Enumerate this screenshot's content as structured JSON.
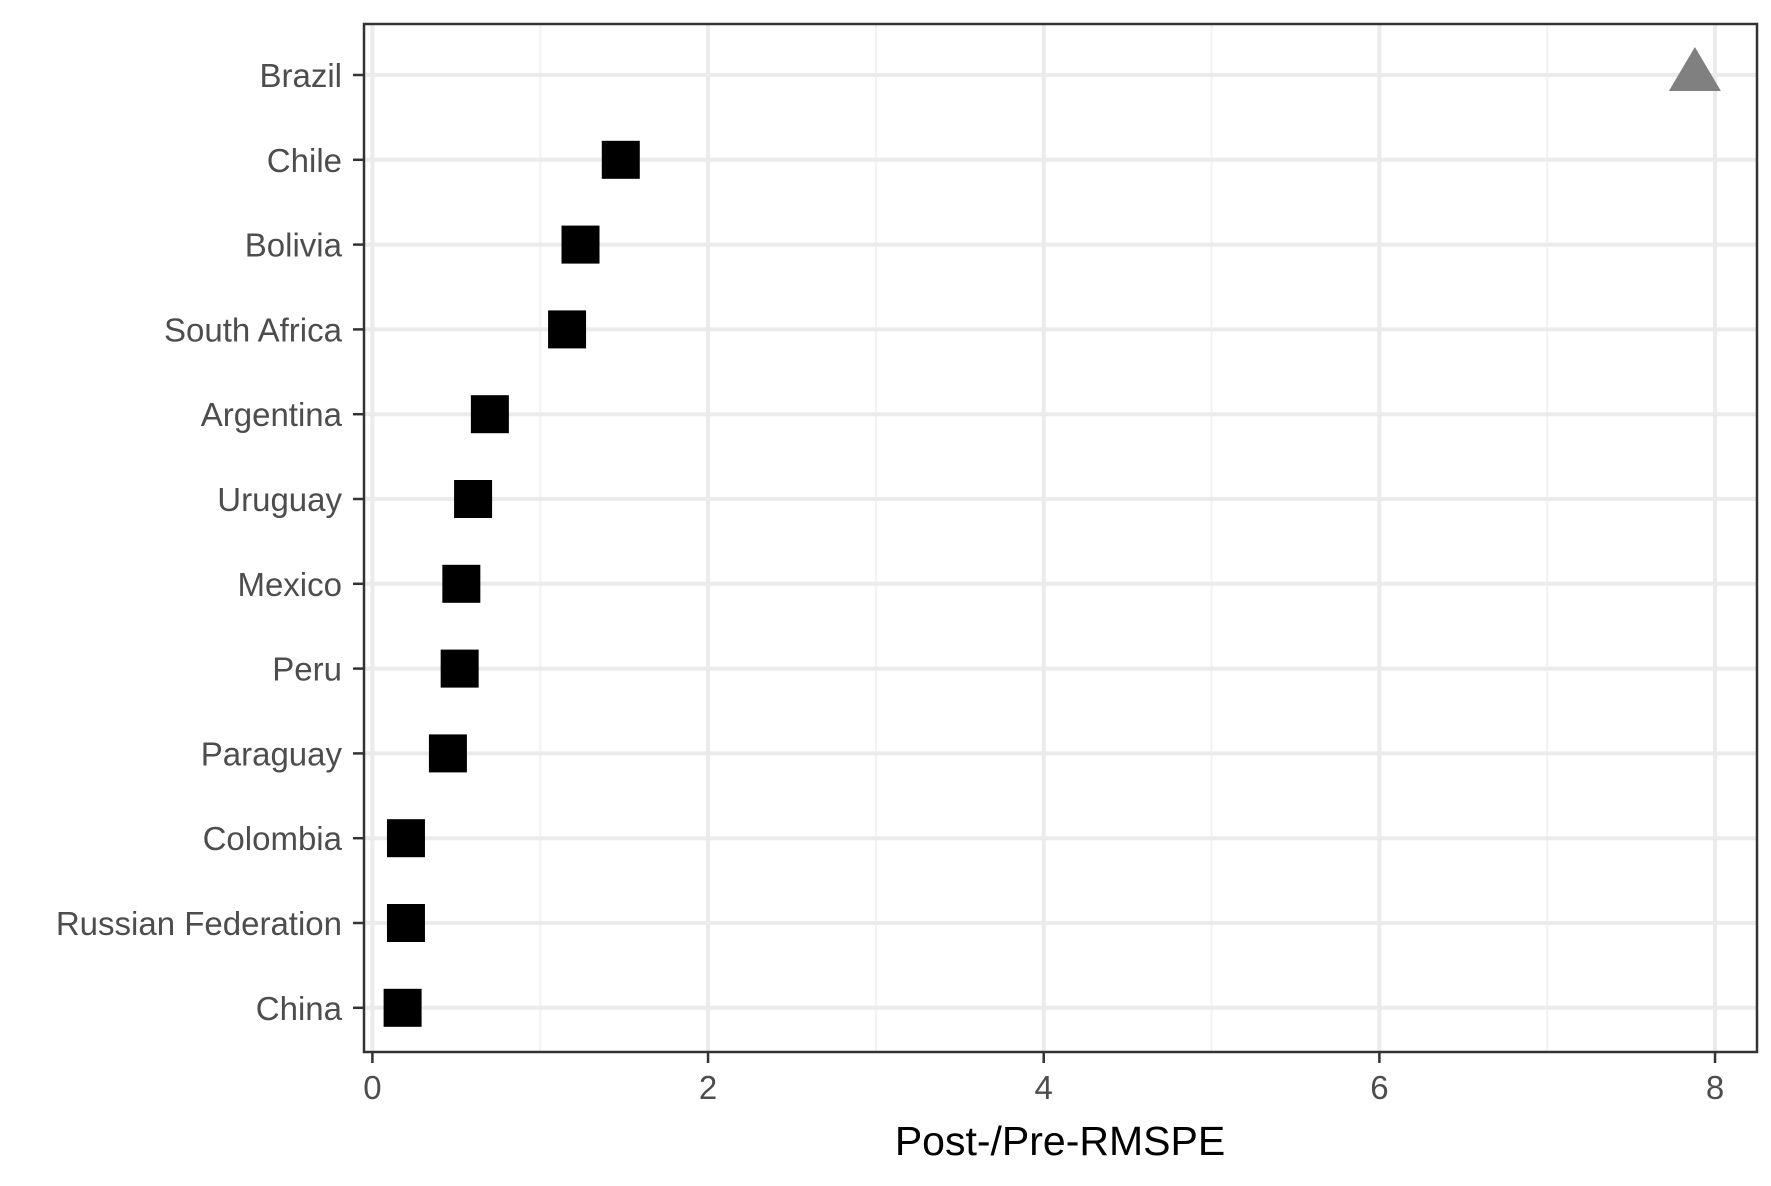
{
  "chart_data": {
    "type": "scatter",
    "title": "",
    "xlabel": "Post-/Pre-RMSPE",
    "ylabel": "",
    "xlim": [
      -0.05,
      8.25
    ],
    "x_ticks": [
      0,
      2,
      4,
      6,
      8
    ],
    "x_tick_labels": [
      "0",
      "2",
      "4",
      "6",
      "8"
    ],
    "grid": true,
    "legend": "none",
    "categories": [
      "Brazil",
      "Chile",
      "Bolivia",
      "South Africa",
      "Argentina",
      "Uruguay",
      "Mexico",
      "Peru",
      "Paraguay",
      "Colombia",
      "Russian Federation",
      "China"
    ],
    "series": [
      {
        "values": [
          7.88,
          1.48,
          1.24,
          1.16,
          0.7,
          0.6,
          0.53,
          0.52,
          0.45,
          0.2,
          0.2,
          0.18
        ],
        "shapes": [
          "triangle",
          "square",
          "square",
          "square",
          "square",
          "square",
          "square",
          "square",
          "square",
          "square",
          "square",
          "square"
        ],
        "colors": [
          "#808080",
          "#000000",
          "#000000",
          "#000000",
          "#000000",
          "#000000",
          "#000000",
          "#000000",
          "#000000",
          "#000000",
          "#000000",
          "#000000"
        ]
      }
    ],
    "colors": {
      "panel_border": "#333333",
      "grid_major": "#ebebeb",
      "grid_minor": "#f2f2f2",
      "tick": "#333333",
      "tick_label": "#4d4d4d",
      "axis_title": "#000000"
    }
  }
}
